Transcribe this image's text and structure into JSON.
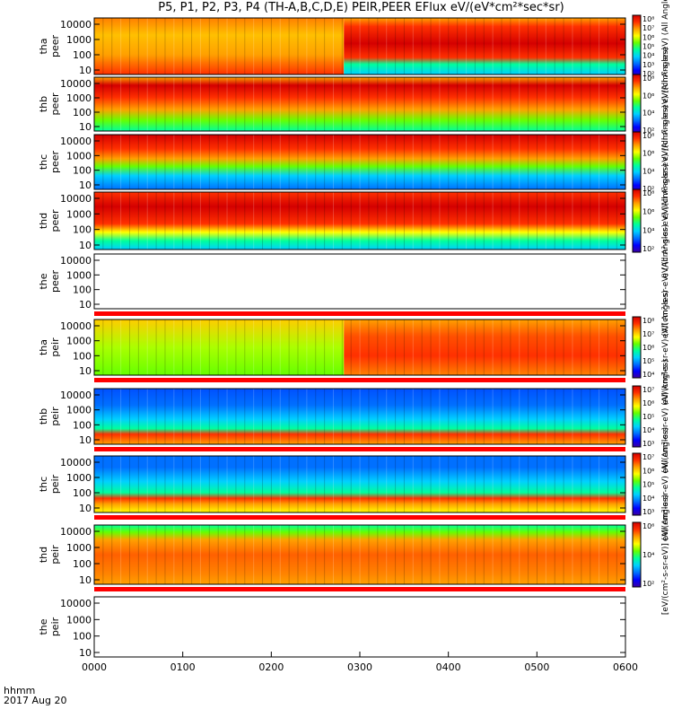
{
  "title": {
    "text": "P5, P1, P2, P3, P4 (TH-A,B,C,D,E) PEIR,PEER EFlux eV/(eV*cm²*sec*sr)"
  },
  "time_axis": {
    "label_line1": "hhmm",
    "label_line2": "2017 Aug 20",
    "ticks": [
      "0000",
      "0100",
      "0200",
      "0300",
      "0400",
      "0500",
      "0600"
    ]
  },
  "chart_data": {
    "type": "heatmap",
    "xlabel": "hhmm",
    "date": "2017 Aug 20",
    "x_range": [
      "0000",
      "0600"
    ],
    "y_scale": "log",
    "y_ticks": [
      "10",
      "100",
      "1000",
      "10000"
    ],
    "panels": [
      {
        "id": "tha-peer",
        "label": "tha peer",
        "species": "electron",
        "has_colorbar": true,
        "colorbar_ticks": [
          "10²",
          "10³",
          "10⁴",
          "10⁵",
          "10⁶",
          "10⁷",
          "10⁸"
        ],
        "colorbar_label": "eV/(cm²-s-sr-eV) (All Angles)",
        "bad_flag_strip": false
      },
      {
        "id": "thb-peer",
        "label": "thb peer",
        "species": "electron",
        "has_colorbar": true,
        "colorbar_ticks": [
          "10²",
          "10⁴",
          "10⁶",
          "10⁸"
        ],
        "colorbar_label": "eV/(cm²-s-sr-eV) (All Angles)",
        "bad_flag_strip": false
      },
      {
        "id": "thc-peer",
        "label": "thc peer",
        "species": "electron",
        "has_colorbar": true,
        "colorbar_ticks": [
          "10²",
          "10⁴",
          "10⁶",
          "10⁸"
        ],
        "colorbar_label": "eV/(cm²-s-sr-eV) (All Angles)",
        "bad_flag_strip": false
      },
      {
        "id": "thd-peer",
        "label": "thd peer",
        "species": "electron",
        "has_colorbar": true,
        "colorbar_ticks": [
          "10²",
          "10⁴",
          "10⁶",
          "10⁸"
        ],
        "colorbar_label": "eV/(cm²-s-sr-eV) (All Angles)",
        "bad_flag_strip": false
      },
      {
        "id": "the-peer",
        "label": "the peer",
        "species": "electron",
        "has_colorbar": false,
        "colorbar_ticks": [],
        "colorbar_label": "eV/(cm²-s-sr-eV) (All Angles)",
        "bad_flag_strip": true
      },
      {
        "id": "tha-peir",
        "label": "tha peir",
        "species": "ion",
        "has_colorbar": true,
        "colorbar_ticks": [
          "10⁴",
          "10⁵",
          "10⁶",
          "10⁷",
          "10⁸"
        ],
        "colorbar_label": "eV/(cm²-s-sr-eV) (All Angles)",
        "bad_flag_strip": true
      },
      {
        "id": "thb-peir",
        "label": "thb peir",
        "species": "ion",
        "has_colorbar": true,
        "colorbar_ticks": [
          "10³",
          "10⁴",
          "10⁵",
          "10⁶",
          "10⁷"
        ],
        "colorbar_label": "eV/(cm²-s-sr-eV) (All Angles)",
        "bad_flag_strip": true
      },
      {
        "id": "thc-peir",
        "label": "thc peir",
        "species": "ion",
        "has_colorbar": true,
        "colorbar_ticks": [
          "10³",
          "10⁴",
          "10⁵",
          "10⁶",
          "10⁷"
        ],
        "colorbar_label": "eV/(cm²-s-sr-eV) (All Angles)",
        "bad_flag_strip": true
      },
      {
        "id": "thd-peir",
        "label": "thd peir",
        "species": "ion",
        "has_colorbar": true,
        "colorbar_ticks": [
          "10²",
          "10⁴",
          "10⁶"
        ],
        "colorbar_label": "[eV/(cm²-s-sr-eV)] (All Angles)",
        "bad_flag_strip": true
      },
      {
        "id": "the-peir",
        "label": "the peir",
        "species": "ion",
        "has_colorbar": false,
        "colorbar_ticks": [],
        "colorbar_label": "",
        "bad_flag_strip": false
      }
    ]
  },
  "colors": {
    "map": [
      "#3c00a0",
      "#0000ff",
      "#0070ff",
      "#00d0ff",
      "#00ff9c",
      "#66ff00",
      "#ffff00",
      "#ffa000",
      "#ff3000",
      "#d40000"
    ],
    "flag_red": "#ff0000",
    "flag_yellow": "#ffff00",
    "frame": "#000000"
  }
}
